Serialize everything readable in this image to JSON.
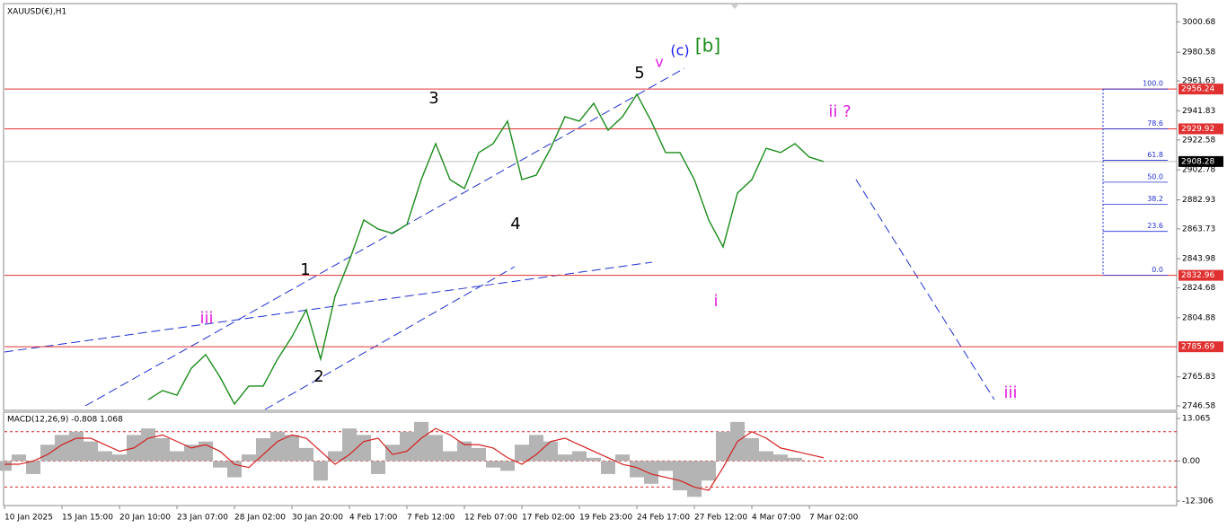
{
  "chart_data": {
    "type": "line",
    "title": "XAUUSD(€),H1",
    "values": [
      null,
      null,
      null,
      null,
      null,
      null,
      null,
      null,
      null,
      null,
      2750.7,
      2756.7,
      2753.7,
      2771.5,
      2780.5,
      2765.6,
      2747.8,
      2759.7,
      2759.7,
      2777.5,
      2792.3,
      2810.2,
      2777.5,
      2819.1,
      2842.8,
      2869.6,
      2863.6,
      2860.7,
      2866.6,
      2896.3,
      2920.1,
      2896.3,
      2890.4,
      2914.2,
      2920.1,
      2935.0,
      2896.3,
      2899.3,
      2917.1,
      2937.9,
      2935.0,
      2946.8,
      2929.0,
      2937.9,
      2952.8,
      2935.0,
      2914.2,
      2914.2,
      2896.3,
      2869.6,
      2851.8,
      2887.4,
      2896.3,
      2917.1,
      2914.2,
      2920.1,
      2911.2,
      2908.28
    ],
    "color": "#1a8c1a",
    "ylim": [
      2744.2,
      3012.2
    ],
    "yticks": [
      3000.68,
      2980.58,
      2961.63,
      2941.83,
      2922.58,
      2902.78,
      2882.93,
      2863.73,
      2843.98,
      2824.68,
      2804.88,
      2765.83,
      2746.58
    ],
    "xticks": [
      "10 Jan 2025",
      "15 Jan 15:00",
      "20 Jan 10:00",
      "23 Jan 07:00",
      "28 Jan 02:00",
      "30 Jan 20:00",
      "4 Feb 17:00",
      "7 Feb 12:00",
      "12 Feb 07:00",
      "17 Feb 02:00",
      "19 Feb 23:00",
      "24 Feb 17:00",
      "27 Feb 12:00",
      "4 Mar 07:00",
      "7 Mar 02:00"
    ],
    "levels": [
      {
        "value": 2956.24,
        "color": "#e03030"
      },
      {
        "value": 2929.92,
        "color": "#e03030"
      },
      {
        "value": 2908.28,
        "color": "#c0c0c0"
      },
      {
        "value": 2832.96,
        "color": "#e03030"
      },
      {
        "value": 2785.69,
        "color": "#e03030"
      }
    ],
    "fib": [
      {
        "value": 100,
        "label": "100.0"
      },
      {
        "value": 78.6,
        "label": "78.6"
      },
      {
        "value": 61.8,
        "label": "61.8"
      },
      {
        "value": 50,
        "label": "50.0"
      },
      {
        "value": 38.2,
        "label": "38.2"
      },
      {
        "value": 23.6,
        "label": "23.6"
      },
      {
        "value": 0,
        "label": "0.0"
      }
    ],
    "annotations": [
      {
        "text": "3",
        "color": "#000000"
      },
      {
        "text": "5",
        "color": "#000000"
      },
      {
        "text": "v",
        "color": "#e020e0"
      },
      {
        "text": "(c)",
        "color": "#1a1aff"
      },
      {
        "text": "[b]",
        "color": "#1a8c1a"
      },
      {
        "text": "4",
        "color": "#000000"
      },
      {
        "text": "1",
        "color": "#000000"
      },
      {
        "text": "2",
        "color": "#000000"
      },
      {
        "text": "iii",
        "color": "#e020e0"
      },
      {
        "text": "i",
        "color": "#e020e0"
      },
      {
        "text": "ii ?",
        "color": "#e020e0"
      },
      {
        "text": "iii",
        "color": "#e020e0"
      }
    ],
    "macd": {
      "title": "MACD(12,26,9) -0.808 1.068",
      "ylim": [
        -13.4,
        15.0
      ],
      "yticks": [
        13.065,
        {
          "value": 0,
          "label": "0.00"
        },
        -12.306
      ],
      "levels": [
        9,
        -8
      ],
      "hist_color": "#b4b4b4",
      "signal_color": "#d42020",
      "hist": [
        -3,
        2,
        -4,
        5,
        8,
        9,
        6,
        3,
        2,
        8,
        10,
        7,
        3,
        5,
        6,
        -2,
        -5,
        2,
        7,
        9,
        8,
        4,
        -6,
        3,
        10,
        8,
        -4,
        5,
        9,
        12,
        8,
        3,
        6,
        4,
        -2,
        -3,
        5,
        8,
        6,
        2,
        3,
        1,
        -4,
        2,
        -5,
        -7,
        -3,
        -9,
        -11,
        -6,
        9,
        12,
        7,
        3,
        2,
        1,
        0,
        0
      ],
      "signal": [
        -1,
        -1,
        0,
        2,
        5,
        7,
        7,
        5,
        3,
        4,
        7,
        8,
        6,
        4,
        5,
        3,
        -1,
        -2,
        2,
        6,
        8,
        7,
        3,
        -1,
        2,
        6,
        7,
        2,
        3,
        7,
        10,
        8,
        5,
        5,
        4,
        1,
        -1,
        2,
        6,
        7,
        5,
        3,
        1,
        -1,
        -2,
        -4,
        -5,
        -6,
        -8,
        -9,
        -2,
        6,
        9,
        7,
        4,
        3,
        2,
        1
      ]
    }
  }
}
